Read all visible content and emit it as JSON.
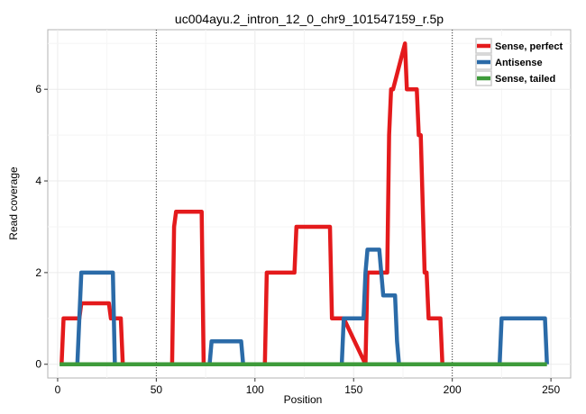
{
  "chart_data": {
    "type": "line",
    "title": "uc004ayu.2_intron_12_0_chr9_101547159_r.5p",
    "xlabel": "Position",
    "ylabel": "Read coverage",
    "xlim": [
      -5,
      260
    ],
    "ylim": [
      -0.3,
      7.3
    ],
    "x_ticks": [
      0,
      50,
      100,
      150,
      200,
      250
    ],
    "y_ticks": [
      0,
      2,
      4,
      6
    ],
    "vlines": [
      50,
      200
    ],
    "grid": true,
    "legend_position": "top-right",
    "series": [
      {
        "name": "Sense, perfect",
        "color": "#e41a1c",
        "x": [
          2,
          3,
          11,
          12,
          26,
          27,
          32,
          33,
          58,
          59,
          60,
          73,
          74,
          105,
          106,
          120,
          121,
          138,
          139,
          145,
          156,
          157,
          167,
          168,
          169,
          170,
          176,
          177,
          178,
          182,
          183,
          184,
          186,
          187,
          188,
          194,
          195
        ],
        "y": [
          0,
          1,
          1,
          1.33,
          1.33,
          1,
          1,
          0,
          0,
          3,
          3.33,
          3.33,
          0,
          0,
          2,
          2,
          3,
          3,
          1,
          1,
          0,
          2,
          2,
          5,
          6,
          6,
          7,
          6,
          6,
          6,
          5,
          5,
          2,
          2,
          1,
          1,
          0
        ]
      },
      {
        "name": "Antisense",
        "color": "#2b6ba8",
        "x": [
          10,
          11,
          12,
          28,
          29,
          77,
          78,
          93,
          94,
          144,
          145,
          155,
          156,
          157,
          163,
          164,
          165,
          171,
          172,
          173,
          174,
          224,
          225,
          247,
          248
        ],
        "y": [
          0,
          1,
          2,
          2,
          0,
          0,
          0.5,
          0.5,
          0,
          0,
          1,
          1,
          2,
          2.5,
          2.5,
          2,
          1.5,
          1.5,
          0.5,
          0,
          0,
          0,
          1,
          1,
          0
        ]
      },
      {
        "name": "Sense, tailed",
        "color": "#3e9b3a",
        "x": [
          1,
          248
        ],
        "y": [
          0,
          0
        ]
      }
    ]
  }
}
